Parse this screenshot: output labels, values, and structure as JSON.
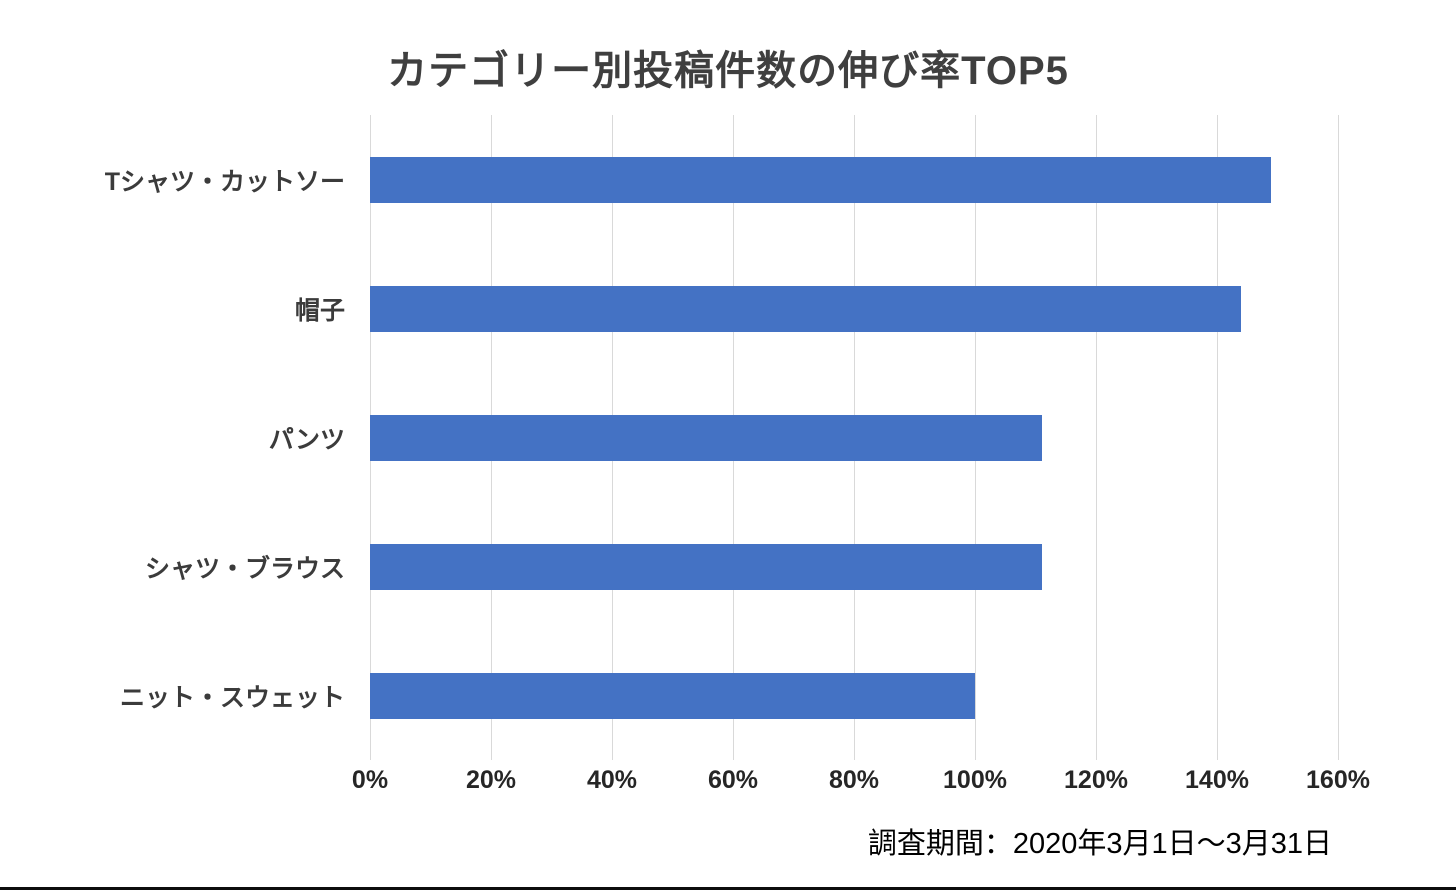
{
  "chart_data": {
    "type": "bar",
    "orientation": "horizontal",
    "title": "カテゴリー別投稿件数の伸び率TOP5",
    "categories": [
      "Tシャツ・カットソー",
      "帽子",
      "パンツ",
      "シャツ・ブラウス",
      "ニット・スウェット"
    ],
    "values": [
      149,
      144,
      111,
      111,
      100
    ],
    "unit": "%",
    "xlim": [
      0,
      160
    ],
    "x_tick_values": [
      0,
      20,
      40,
      60,
      80,
      100,
      120,
      140,
      160
    ],
    "x_tick_labels": [
      "0%",
      "20%",
      "40%",
      "60%",
      "80%",
      "100%",
      "120%",
      "140%",
      "160%"
    ],
    "bar_color": "#4472c4",
    "gridline_color": "#d9d9d9",
    "grid": "vertical gridlines at each 20% tick",
    "legend": "none",
    "footnote": "調査期間：2020年3月1日～3月31日"
  }
}
